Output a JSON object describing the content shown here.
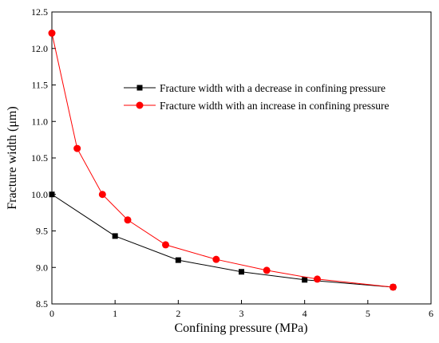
{
  "chart_data": {
    "type": "line",
    "xlabel": "Confining pressure (MPa)",
    "ylabel": "Fracture width (μm)",
    "xlim": [
      0,
      6
    ],
    "ylim": [
      8.5,
      12.5
    ],
    "xticks": [
      "0",
      "1",
      "2",
      "3",
      "4",
      "5",
      "6"
    ],
    "yticks": [
      "8.5",
      "9.0",
      "9.5",
      "10.0",
      "10.5",
      "11.0",
      "11.5",
      "12.0",
      "12.5"
    ],
    "grid": false,
    "legend_position": "upper-right",
    "series": [
      {
        "name": "Fracture width with a decrease in confining pressure",
        "color": "#000000",
        "marker": "square",
        "x": [
          0,
          1,
          2,
          3,
          4,
          5.4
        ],
        "y": [
          10.0,
          9.43,
          9.1,
          8.94,
          8.83,
          8.73
        ]
      },
      {
        "name": "Fracture width with an increase in confining pressure",
        "color": "#ff0000",
        "marker": "circle",
        "x": [
          0,
          0.4,
          0.8,
          1.2,
          1.8,
          2.6,
          3.4,
          4.2,
          5.4
        ],
        "y": [
          12.21,
          10.63,
          10.0,
          9.65,
          9.31,
          9.11,
          8.96,
          8.84,
          8.73
        ]
      }
    ]
  }
}
